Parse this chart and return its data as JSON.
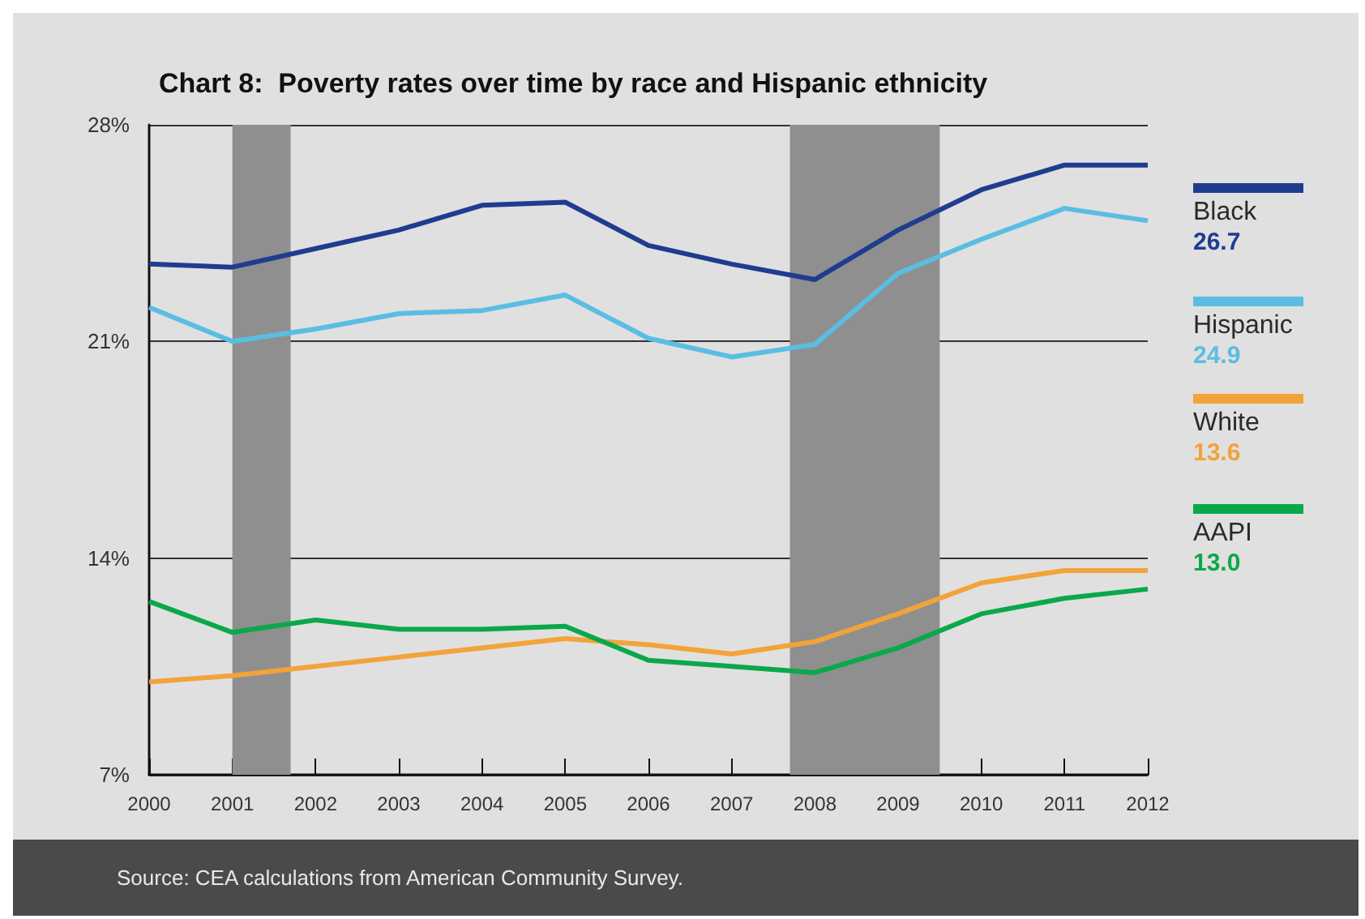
{
  "chart_data": {
    "type": "line",
    "title": "Chart 8:  Poverty rates over time by race and Hispanic ethnicity",
    "x": [
      2000,
      2001,
      2002,
      2003,
      2004,
      2005,
      2006,
      2007,
      2008,
      2009,
      2010,
      2011,
      2012
    ],
    "xlim": [
      2000,
      2012
    ],
    "xticks": [
      2000,
      2001,
      2002,
      2003,
      2004,
      2005,
      2006,
      2007,
      2008,
      2009,
      2010,
      2011,
      2012
    ],
    "ylim": [
      7,
      28
    ],
    "yticks": [
      {
        "value": 7,
        "label": "7%"
      },
      {
        "value": 14,
        "label": "14%"
      },
      {
        "value": 21,
        "label": "21%"
      },
      {
        "value": 28,
        "label": "28%"
      }
    ],
    "grid": "y",
    "legend": "right",
    "marker": "none",
    "series": [
      {
        "name": "Black",
        "color": "#1f3d8f",
        "values": [
          23.5,
          23.4,
          24.0,
          24.6,
          25.4,
          25.5,
          24.1,
          23.5,
          23.0,
          24.6,
          25.9,
          26.7,
          26.7
        ]
      },
      {
        "name": "Hispanic",
        "color": "#5bbde3",
        "values": [
          22.1,
          21.0,
          21.4,
          21.9,
          22.0,
          22.5,
          21.1,
          20.5,
          20.9,
          23.2,
          24.3,
          25.3,
          24.9
        ]
      },
      {
        "name": "White",
        "color": "#f2a33a",
        "values": [
          10.0,
          10.2,
          10.5,
          10.8,
          11.1,
          11.4,
          11.2,
          10.9,
          11.3,
          12.2,
          13.2,
          13.6,
          13.6
        ]
      },
      {
        "name": "AAPI",
        "color": "#0ba84a",
        "values": [
          12.6,
          11.6,
          12.0,
          11.7,
          11.7,
          11.8,
          10.7,
          10.5,
          10.3,
          11.1,
          12.2,
          12.7,
          13.0
        ]
      }
    ],
    "bands": [
      {
        "axis": "x",
        "from": 2001.0,
        "to": 2001.7,
        "color": "#8f8f8f"
      },
      {
        "axis": "x",
        "from": 2007.7,
        "to": 2009.5,
        "color": "#8f8f8f"
      }
    ],
    "annotations": [
      "26.7",
      "24.9",
      "13.6",
      "13.0",
      "Source: CEA calculations from American Community Survey."
    ]
  }
}
